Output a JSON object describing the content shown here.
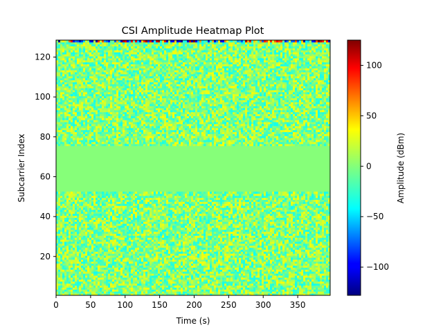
{
  "chart_data": {
    "type": "heatmap",
    "title": "CSI Amplitude Heatmap Plot",
    "xlabel": "Time (s)",
    "ylabel": "Subcarrier Index",
    "xlim": [
      0,
      397
    ],
    "ylim": [
      1,
      128
    ],
    "x_ticks": [
      0,
      50,
      100,
      150,
      200,
      250,
      300,
      350
    ],
    "y_ticks": [
      20,
      40,
      60,
      80,
      100,
      120
    ],
    "colorbar": {
      "label": "Amplitude (dBm)",
      "colormap": "jet",
      "range": [
        -128,
        125
      ],
      "ticks": [
        -100,
        -50,
        0,
        50,
        100
      ],
      "tick_labels": [
        "−100",
        "−50",
        "0",
        "50",
        "100"
      ]
    },
    "regions": [
      {
        "subcarriers": [
          1,
          52
        ],
        "description": "noisy",
        "amplitude_spread": [
          -30,
          30
        ]
      },
      {
        "subcarriers": [
          53,
          75
        ],
        "description": "flat",
        "amplitude": 0
      },
      {
        "subcarriers": [
          76,
          127
        ],
        "description": "noisy",
        "amplitude_spread": [
          -30,
          30
        ]
      },
      {
        "subcarriers": [
          128,
          128
        ],
        "description": "extreme",
        "amplitude_spread": [
          -128,
          125
        ]
      }
    ],
    "grid": false,
    "legend": "colorbar-right"
  }
}
